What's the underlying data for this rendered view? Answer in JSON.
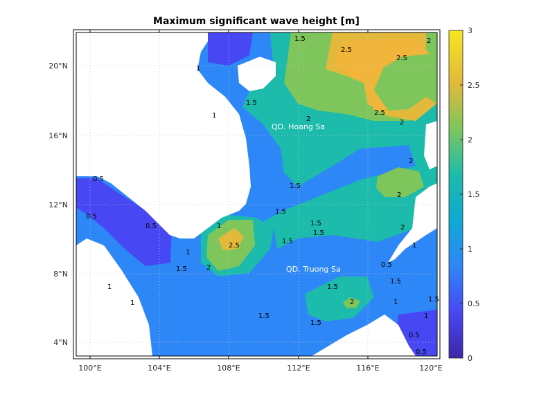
{
  "title": "Maximum significant wave height [m]",
  "map": {
    "lon_ticks": [
      "100°E",
      "104°E",
      "108°E",
      "112°E",
      "116°E",
      "120°E"
    ],
    "lat_ticks": [
      "20°N",
      "16°N",
      "12°N",
      "8°N",
      "4°N"
    ],
    "place_labels": [
      "QD. Hoang Sa",
      "QD. Truong Sa"
    ],
    "contour_labels": [
      "0.5",
      "1",
      "1.5",
      "2",
      "2.5"
    ],
    "land_color": "#ffffff",
    "grid": "dotted"
  },
  "colorbar": {
    "ticks": [
      "3",
      "2.5",
      "2",
      "1.5",
      "1",
      "0.5",
      "0"
    ],
    "colormap": "parula",
    "colors": [
      "#3e26a8",
      "#4748f4",
      "#2e87f7",
      "#0fa9d4",
      "#1cbbab",
      "#7ec65c",
      "#e3b93c",
      "#f6e720"
    ]
  },
  "chart_data": {
    "type": "heatmap",
    "title": "Maximum significant wave height [m]",
    "x_ticks": [
      "100°E",
      "104°E",
      "108°E",
      "112°E",
      "116°E",
      "120°E"
    ],
    "y_ticks": [
      "20°N",
      "16°N",
      "12°N",
      "8°N",
      "4°N"
    ],
    "xlim": [
      99.2,
      120.4
    ],
    "ylim": [
      3.2,
      22
    ],
    "colorbar_range": [
      0,
      3
    ],
    "colorbar_ticks": [
      0,
      0.5,
      1,
      1.5,
      2,
      2.5,
      3
    ],
    "contour_levels": [
      0.5,
      1,
      1.5,
      2,
      2.5
    ],
    "annotations": [
      "QD. Hoang Sa",
      "QD. Truong Sa"
    ]
  }
}
